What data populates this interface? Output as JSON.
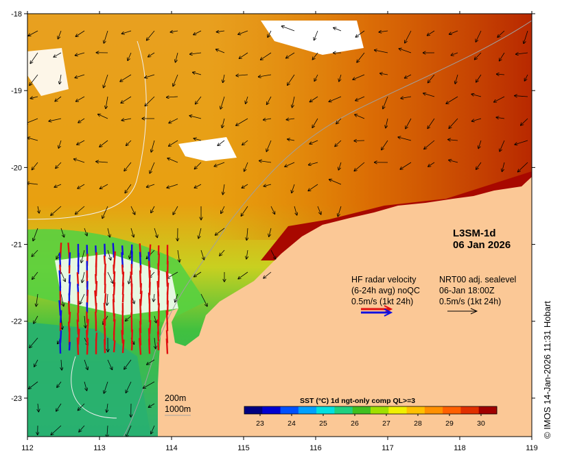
{
  "map": {
    "product_line1": "L3SM-1d",
    "product_line2": "06 Jan 2026",
    "lon_ticks": [
      112,
      113,
      114,
      115,
      116,
      117,
      118,
      119
    ],
    "lat_ticks": [
      -18,
      -19,
      -20,
      -21,
      -22,
      -23
    ],
    "lon_range": [
      112,
      119
    ],
    "lat_range": [
      -23.5,
      -18
    ],
    "depth_label_1": "200m",
    "depth_label_2": "1000m"
  },
  "legend": {
    "hf_line1": "HF radar velocity",
    "hf_line2": "(6-24h avg) noQC",
    "hf_line3": "0.5m/s (1kt 24h)",
    "nrt_line1": "NRT00 adj. sealevel",
    "nrt_line2": "06-Jan 18:00Z",
    "nrt_line3": "0.5m/s (1kt 24h)"
  },
  "colorbar": {
    "title": "SST (°C) 1d ngt-only comp QL>=3",
    "ticks": [
      23,
      24,
      25,
      26,
      27,
      28,
      29,
      30
    ],
    "range": [
      22.5,
      30.5
    ],
    "colors": [
      "#000080",
      "#0000d0",
      "#0050ff",
      "#00a0ff",
      "#00e0e0",
      "#20d080",
      "#40c020",
      "#a0e000",
      "#f0f000",
      "#ffc000",
      "#ff9000",
      "#ff6000",
      "#e03000",
      "#a00000"
    ]
  },
  "copyright": "© IMOS 14-Jan-2026 11:31 Hobart",
  "colors": {
    "land": "#fbc896",
    "sst_warm": "#c44a00",
    "sst_mid": "#e89000",
    "sst_cool": "#30c040",
    "radar_red": "#e01010",
    "radar_blue": "#1010e0"
  }
}
